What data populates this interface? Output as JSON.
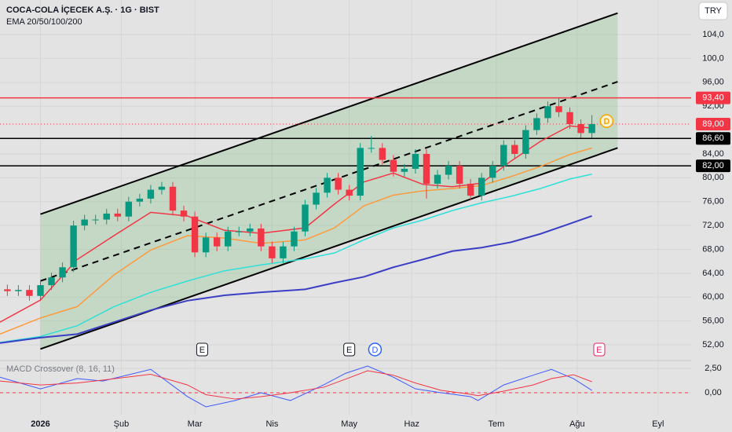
{
  "toolbar": {
    "currency": "TRY"
  },
  "chart_data": [
    {
      "type": "candlestick",
      "title": "COCA-COLA İÇECEK A.Ş. · 1G · BIST",
      "subtitle": "EMA 20/50/100/200",
      "up_color": "#089981",
      "down_color": "#f23645",
      "x": [
        -9,
        -6,
        -3,
        0,
        3,
        6,
        9,
        12,
        15,
        18,
        21,
        24,
        27,
        30,
        33,
        36,
        39,
        42,
        45,
        48,
        51,
        54,
        57,
        60,
        63,
        66,
        69,
        72,
        75,
        78,
        81,
        84,
        87,
        90,
        93,
        96,
        99,
        102,
        105,
        108,
        111,
        114,
        117,
        120,
        123,
        126,
        129,
        132,
        135,
        138,
        141,
        144,
        147,
        150
      ],
      "open": [
        61.3,
        61.0,
        61.2,
        60.2,
        62.0,
        63.3,
        65.0,
        72.0,
        73.0,
        73.0,
        74.0,
        73.5,
        76.0,
        76.5,
        78.0,
        78.5,
        74.5,
        73.5,
        67.5,
        70.0,
        68.5,
        71.0,
        71.0,
        71.5,
        68.5,
        66.5,
        68.5,
        71.0,
        75.5,
        77.5,
        80.0,
        78.0,
        77.0,
        85.0,
        85.0,
        83.0,
        81.0,
        81.5,
        84.0,
        79.0,
        80.5,
        82.0,
        79.0,
        77.0,
        80.0,
        82.0,
        85.5,
        84.0,
        88.0,
        90.0,
        92.0,
        91.0,
        89.0,
        87.5
      ],
      "high": [
        62.1,
        62.0,
        62.0,
        62.8,
        64.1,
        65.8,
        72.8,
        73.8,
        73.8,
        74.8,
        74.8,
        76.8,
        77.3,
        78.8,
        79.3,
        79.3,
        75.3,
        74.3,
        70.8,
        70.8,
        71.8,
        71.8,
        72.3,
        72.3,
        69.3,
        69.3,
        71.8,
        76.3,
        78.3,
        80.8,
        80.8,
        78.8,
        85.8,
        87.0,
        85.8,
        83.8,
        82.3,
        84.8,
        84.8,
        81.3,
        82.8,
        82.8,
        79.8,
        80.8,
        82.8,
        86.3,
        86.3,
        88.8,
        90.8,
        92.8,
        93.5,
        91.8,
        89.8,
        90.5
      ],
      "low": [
        60.2,
        60.2,
        59.4,
        59.4,
        61.2,
        62.5,
        64.2,
        71.2,
        72.2,
        72.2,
        72.7,
        72.7,
        75.2,
        75.7,
        77.2,
        73.7,
        72.7,
        66.7,
        66.7,
        67.7,
        67.7,
        70.2,
        70.2,
        67.7,
        65.7,
        65.7,
        67.7,
        70.2,
        74.7,
        76.7,
        77.2,
        76.2,
        76.2,
        84.2,
        82.2,
        80.2,
        80.2,
        80.7,
        76.5,
        78.2,
        79.7,
        78.2,
        76.2,
        76.2,
        79.2,
        81.2,
        83.2,
        83.2,
        87.2,
        89.2,
        90.2,
        88.2,
        86.7,
        86.7
      ],
      "close": [
        61.0,
        61.2,
        60.2,
        62.0,
        63.3,
        65.0,
        72.0,
        73.0,
        73.0,
        74.0,
        73.5,
        76.0,
        76.5,
        78.0,
        78.5,
        74.5,
        73.5,
        67.5,
        70.0,
        68.5,
        71.0,
        71.0,
        71.5,
        68.5,
        66.5,
        68.5,
        71.0,
        75.5,
        77.5,
        80.0,
        78.0,
        77.0,
        85.0,
        85.0,
        83.0,
        81.0,
        81.5,
        84.0,
        79.0,
        80.5,
        82.0,
        79.0,
        77.0,
        80.0,
        82.0,
        85.5,
        84.0,
        88.0,
        90.0,
        92.0,
        91.0,
        89.0,
        87.5,
        89.0
      ],
      "series": [
        {
          "color": "#f23645",
          "x": [
            -11,
            0,
            10,
            20,
            30,
            40,
            50,
            60,
            72,
            80,
            88,
            96,
            104,
            112,
            120,
            128,
            136,
            144,
            150
          ],
          "values": [
            55.8,
            59.5,
            66.3,
            70.3,
            74.2,
            73.6,
            71.2,
            70.7,
            71.6,
            75.6,
            79.3,
            80.8,
            78.9,
            78.5,
            79.1,
            82.8,
            86.1,
            88.7,
            88.3
          ]
        },
        {
          "color": "#ff9a3c",
          "x": [
            -11,
            0,
            10,
            20,
            30,
            40,
            50,
            60,
            72,
            80,
            88,
            96,
            104,
            112,
            120,
            128,
            136,
            144,
            150
          ],
          "values": [
            53.8,
            56.5,
            58.4,
            63.7,
            67.9,
            70.3,
            69.9,
            69.0,
            69.6,
            71.6,
            75.3,
            77.1,
            77.8,
            78.2,
            78.7,
            80.2,
            81.9,
            83.9,
            85.0
          ]
        },
        {
          "color": "#2fe0d8",
          "x": [
            -11,
            0,
            10,
            20,
            30,
            40,
            50,
            60,
            72,
            80,
            88,
            96,
            104,
            112,
            120,
            128,
            136,
            144,
            150
          ],
          "values": [
            52.4,
            53.4,
            55.2,
            58.4,
            60.8,
            62.7,
            64.4,
            65.4,
            66.4,
            67.4,
            69.6,
            71.6,
            72.9,
            74.5,
            75.8,
            76.9,
            78.2,
            79.8,
            80.6
          ]
        },
        {
          "color": "#3b3fc4",
          "x": [
            -11,
            0,
            10,
            20,
            30,
            40,
            50,
            60,
            72,
            80,
            88,
            96,
            104,
            112,
            120,
            128,
            136,
            144,
            150
          ],
          "values": [
            52.3,
            53.2,
            53.8,
            55.8,
            57.8,
            59.4,
            60.3,
            60.8,
            61.3,
            62.4,
            63.4,
            65.0,
            66.3,
            67.7,
            68.3,
            69.2,
            70.6,
            72.3,
            73.6
          ]
        }
      ],
      "channel": {
        "color": "#000000",
        "fill": "#4caf50",
        "x": [
          0,
          157
        ],
        "upper": [
          73.9,
          107.6
        ],
        "middle": [
          62.7,
          96.1
        ],
        "lower": [
          51.3,
          85.0
        ]
      },
      "levels": [
        {
          "value": 93.4,
          "label": "93,40",
          "color": "#f23645"
        },
        {
          "value": 89,
          "label": "89,00",
          "color": "#f23645"
        },
        {
          "value": 86.6,
          "label": "86,60",
          "color": "#000000"
        },
        {
          "value": 82,
          "label": "82,00",
          "color": "#000000"
        }
      ],
      "events": [
        {
          "label": "E",
          "x": 44,
          "shape": "square",
          "color": "#131722"
        },
        {
          "label": "E",
          "x": 84,
          "shape": "square",
          "color": "#131722"
        },
        {
          "label": "D",
          "x": 91,
          "shape": "circle",
          "color": "#2962ff"
        },
        {
          "label": "E",
          "x": 152,
          "shape": "square",
          "color": "#e91e63"
        }
      ],
      "markers": [
        {
          "label": "D",
          "x": 154,
          "y": 89.5,
          "color": "#f7a600"
        }
      ],
      "xlim": [
        -11,
        177
      ],
      "ylim": [
        49.5,
        109.8
      ],
      "yticks": [
        {
          "value": 104,
          "label": "104,0"
        },
        {
          "value": 100,
          "label": "100,0"
        },
        {
          "value": 96,
          "label": "96,00"
        },
        {
          "value": 92,
          "label": "92,00"
        },
        {
          "value": 84,
          "label": "84,00"
        },
        {
          "value": 80,
          "label": "80,00"
        },
        {
          "value": 76,
          "label": "76,00"
        },
        {
          "value": 72,
          "label": "72,00"
        },
        {
          "value": 68,
          "label": "68,00"
        },
        {
          "value": 64,
          "label": "64,00"
        },
        {
          "value": 60,
          "label": "60,00"
        },
        {
          "value": 56,
          "label": "56,00"
        },
        {
          "value": 52,
          "label": "52,00"
        }
      ],
      "grid": true
    },
    {
      "type": "line",
      "title": "MACD Crossover (8, 16, 11)",
      "x": [
        -11,
        0,
        10,
        17,
        30,
        40,
        45,
        53,
        60,
        68,
        77,
        83,
        89,
        96,
        102,
        109,
        117,
        119,
        126,
        134,
        139,
        145,
        150
      ],
      "series": [
        {
          "color": "#3d5afe",
          "values": [
            1.6,
            0.4,
            1.45,
            1.2,
            2.4,
            -0.4,
            -1.45,
            -0.8,
            0,
            -0.8,
            0.8,
            2.0,
            2.74,
            1.6,
            0.4,
            0,
            -0.4,
            -0.8,
            0.8,
            1.8,
            2.4,
            1.45,
            0.24
          ]
        },
        {
          "color": "#f23645",
          "values": [
            1.2,
            0.8,
            1.0,
            1.3,
            1.9,
            0.8,
            -0.2,
            -0.65,
            -0.4,
            0,
            0.56,
            1.4,
            2.26,
            1.8,
            1.0,
            0.24,
            -0.16,
            -0.3,
            0.16,
            0.8,
            1.45,
            1.85,
            1.13
          ]
        }
      ],
      "zero_line": {
        "value": 0,
        "color": "#f23645"
      },
      "xlim": [
        -11,
        177
      ],
      "ylim": [
        -2.26,
        3.23
      ],
      "yticks": [
        {
          "value": 2.5,
          "label": "2,50"
        },
        {
          "value": 0,
          "label": "0,00"
        }
      ],
      "xticks": [
        {
          "value": 0,
          "label": "2026"
        },
        {
          "value": 22,
          "label": "Şub"
        },
        {
          "value": 42,
          "label": "Mar"
        },
        {
          "value": 63,
          "label": "Nis"
        },
        {
          "value": 84,
          "label": "May"
        },
        {
          "value": 101,
          "label": "Haz"
        },
        {
          "value": 124,
          "label": "Tem"
        },
        {
          "value": 146,
          "label": "Ağu"
        },
        {
          "value": 168,
          "label": "Eyl"
        }
      ],
      "grid": true
    }
  ]
}
